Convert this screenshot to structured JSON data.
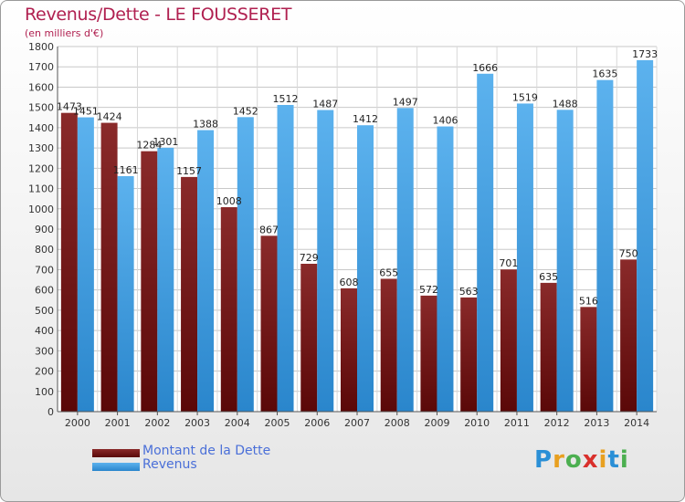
{
  "title": "Revenus/Dette - LE FOUSSERET",
  "subtitle": "(en milliers d'€)",
  "legend": [
    {
      "label": "Montant de la Dette",
      "color": "#7a1a1a"
    },
    {
      "label": "Revenus",
      "color": "#4aa3e8"
    }
  ],
  "logo": {
    "letters": [
      "P",
      "r",
      "o",
      "x",
      "i",
      "t",
      "i"
    ],
    "colors": [
      "#2a8fd6",
      "#e8a020",
      "#4caf50",
      "#d9302c",
      "#e8a020",
      "#2a8fd6",
      "#4caf50"
    ]
  },
  "chart_data": {
    "type": "bar",
    "categories": [
      "2000",
      "2001",
      "2002",
      "2003",
      "2004",
      "2005",
      "2006",
      "2007",
      "2008",
      "2009",
      "2010",
      "2011",
      "2012",
      "2013",
      "2014"
    ],
    "series": [
      {
        "name": "Montant de la Dette",
        "color": "#7a1a1a",
        "values": [
          1473,
          1424,
          1284,
          1157,
          1008,
          867,
          729,
          608,
          655,
          572,
          563,
          701,
          635,
          516,
          750
        ]
      },
      {
        "name": "Revenus",
        "color": "#4aa3e8",
        "values": [
          1451,
          1161,
          1301,
          1388,
          1452,
          1512,
          1487,
          1412,
          1497,
          1406,
          1666,
          1519,
          1488,
          1635,
          1733
        ]
      }
    ],
    "ylim": [
      0,
      1800
    ],
    "yticks": [
      0,
      100,
      200,
      300,
      400,
      500,
      600,
      700,
      800,
      900,
      1000,
      1100,
      1200,
      1300,
      1400,
      1500,
      1600,
      1700,
      1800
    ],
    "grid": true
  }
}
